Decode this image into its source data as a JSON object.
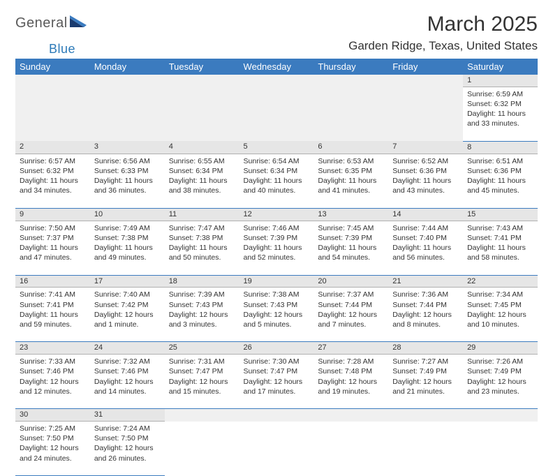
{
  "brand": {
    "text1": "General",
    "text2": "Blue"
  },
  "title": "March 2025",
  "location": "Garden Ridge, Texas, United States",
  "colors": {
    "header_bg": "#3b7bbf",
    "header_text": "#ffffff",
    "daynum_bg": "#e6e6e6",
    "border": "#3b7bbf",
    "text": "#333333",
    "logo_gray": "#5a5a5a",
    "logo_blue": "#2c7ab8"
  },
  "weekdays": [
    "Sunday",
    "Monday",
    "Tuesday",
    "Wednesday",
    "Thursday",
    "Friday",
    "Saturday"
  ],
  "weeks": [
    [
      null,
      null,
      null,
      null,
      null,
      null,
      {
        "n": "1",
        "sr": "6:59 AM",
        "ss": "6:32 PM",
        "dl": "11 hours and 33 minutes."
      }
    ],
    [
      {
        "n": "2",
        "sr": "6:57 AM",
        "ss": "6:32 PM",
        "dl": "11 hours and 34 minutes."
      },
      {
        "n": "3",
        "sr": "6:56 AM",
        "ss": "6:33 PM",
        "dl": "11 hours and 36 minutes."
      },
      {
        "n": "4",
        "sr": "6:55 AM",
        "ss": "6:34 PM",
        "dl": "11 hours and 38 minutes."
      },
      {
        "n": "5",
        "sr": "6:54 AM",
        "ss": "6:34 PM",
        "dl": "11 hours and 40 minutes."
      },
      {
        "n": "6",
        "sr": "6:53 AM",
        "ss": "6:35 PM",
        "dl": "11 hours and 41 minutes."
      },
      {
        "n": "7",
        "sr": "6:52 AM",
        "ss": "6:36 PM",
        "dl": "11 hours and 43 minutes."
      },
      {
        "n": "8",
        "sr": "6:51 AM",
        "ss": "6:36 PM",
        "dl": "11 hours and 45 minutes."
      }
    ],
    [
      {
        "n": "9",
        "sr": "7:50 AM",
        "ss": "7:37 PM",
        "dl": "11 hours and 47 minutes."
      },
      {
        "n": "10",
        "sr": "7:49 AM",
        "ss": "7:38 PM",
        "dl": "11 hours and 49 minutes."
      },
      {
        "n": "11",
        "sr": "7:47 AM",
        "ss": "7:38 PM",
        "dl": "11 hours and 50 minutes."
      },
      {
        "n": "12",
        "sr": "7:46 AM",
        "ss": "7:39 PM",
        "dl": "11 hours and 52 minutes."
      },
      {
        "n": "13",
        "sr": "7:45 AM",
        "ss": "7:39 PM",
        "dl": "11 hours and 54 minutes."
      },
      {
        "n": "14",
        "sr": "7:44 AM",
        "ss": "7:40 PM",
        "dl": "11 hours and 56 minutes."
      },
      {
        "n": "15",
        "sr": "7:43 AM",
        "ss": "7:41 PM",
        "dl": "11 hours and 58 minutes."
      }
    ],
    [
      {
        "n": "16",
        "sr": "7:41 AM",
        "ss": "7:41 PM",
        "dl": "11 hours and 59 minutes."
      },
      {
        "n": "17",
        "sr": "7:40 AM",
        "ss": "7:42 PM",
        "dl": "12 hours and 1 minute."
      },
      {
        "n": "18",
        "sr": "7:39 AM",
        "ss": "7:43 PM",
        "dl": "12 hours and 3 minutes."
      },
      {
        "n": "19",
        "sr": "7:38 AM",
        "ss": "7:43 PM",
        "dl": "12 hours and 5 minutes."
      },
      {
        "n": "20",
        "sr": "7:37 AM",
        "ss": "7:44 PM",
        "dl": "12 hours and 7 minutes."
      },
      {
        "n": "21",
        "sr": "7:36 AM",
        "ss": "7:44 PM",
        "dl": "12 hours and 8 minutes."
      },
      {
        "n": "22",
        "sr": "7:34 AM",
        "ss": "7:45 PM",
        "dl": "12 hours and 10 minutes."
      }
    ],
    [
      {
        "n": "23",
        "sr": "7:33 AM",
        "ss": "7:46 PM",
        "dl": "12 hours and 12 minutes."
      },
      {
        "n": "24",
        "sr": "7:32 AM",
        "ss": "7:46 PM",
        "dl": "12 hours and 14 minutes."
      },
      {
        "n": "25",
        "sr": "7:31 AM",
        "ss": "7:47 PM",
        "dl": "12 hours and 15 minutes."
      },
      {
        "n": "26",
        "sr": "7:30 AM",
        "ss": "7:47 PM",
        "dl": "12 hours and 17 minutes."
      },
      {
        "n": "27",
        "sr": "7:28 AM",
        "ss": "7:48 PM",
        "dl": "12 hours and 19 minutes."
      },
      {
        "n": "28",
        "sr": "7:27 AM",
        "ss": "7:49 PM",
        "dl": "12 hours and 21 minutes."
      },
      {
        "n": "29",
        "sr": "7:26 AM",
        "ss": "7:49 PM",
        "dl": "12 hours and 23 minutes."
      }
    ],
    [
      {
        "n": "30",
        "sr": "7:25 AM",
        "ss": "7:50 PM",
        "dl": "12 hours and 24 minutes."
      },
      {
        "n": "31",
        "sr": "7:24 AM",
        "ss": "7:50 PM",
        "dl": "12 hours and 26 minutes."
      },
      null,
      null,
      null,
      null,
      null
    ]
  ],
  "labels": {
    "sunrise": "Sunrise:",
    "sunset": "Sunset:",
    "daylight": "Daylight:"
  }
}
